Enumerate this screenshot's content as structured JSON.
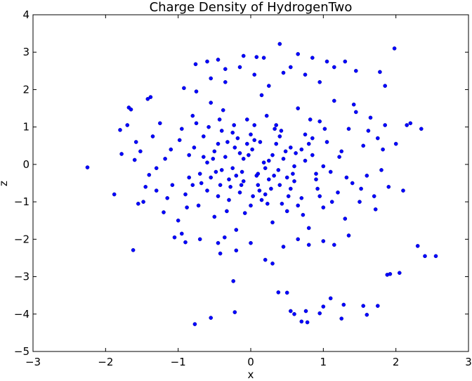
{
  "chart_data": {
    "type": "scatter",
    "title": "Charge Density of HydrogenTwo",
    "xlabel": "x",
    "ylabel": "z",
    "xlim": [
      -3,
      3
    ],
    "ylim": [
      -5,
      4
    ],
    "xticks": [
      "−3",
      "−2",
      "−1",
      "0",
      "1",
      "2",
      "3"
    ],
    "yticks": [
      "−5",
      "−4",
      "−3",
      "−2",
      "−1",
      "0",
      "1",
      "2",
      "3",
      "4"
    ],
    "grid": false,
    "marker_color": "#0000ff",
    "series": [
      {
        "points": [
          [
            -2.25,
            -0.08
          ],
          [
            -1.88,
            -0.8
          ],
          [
            -1.8,
            0.92
          ],
          [
            -1.78,
            0.28
          ],
          [
            -1.68,
            1.52
          ],
          [
            -1.65,
            1.47
          ],
          [
            -1.62,
            -2.29
          ],
          [
            -1.55,
            -1.05
          ],
          [
            -1.48,
            -1.0
          ],
          [
            -1.6,
            0.12
          ],
          [
            -1.52,
            0.35
          ],
          [
            -1.38,
            1.8
          ],
          [
            -1.4,
            -0.28
          ],
          [
            -1.3,
            -0.7
          ],
          [
            -1.2,
            -1.28
          ],
          [
            -1.05,
            -1.95
          ],
          [
            -0.92,
            2.04
          ],
          [
            -0.9,
            -2.08
          ],
          [
            -0.76,
            2.68
          ],
          [
            -0.77,
            -4.27
          ],
          [
            -0.55,
            -4.1
          ],
          [
            -0.42,
            -2.38
          ],
          [
            -0.36,
            -1.95
          ],
          [
            -0.24,
            -3.12
          ],
          [
            -0.22,
            -3.95
          ],
          [
            -0.1,
            2.9
          ],
          [
            0.08,
            2.87
          ],
          [
            0.18,
            2.85
          ],
          [
            0.3,
            -2.65
          ],
          [
            0.4,
            3.22
          ],
          [
            0.38,
            -3.42
          ],
          [
            0.5,
            -3.43
          ],
          [
            0.55,
            -3.92
          ],
          [
            0.6,
            -4.0
          ],
          [
            0.7,
            -4.2
          ],
          [
            0.76,
            -3.92
          ],
          [
            0.78,
            -4.22
          ],
          [
            0.95,
            -3.98
          ],
          [
            1.0,
            -3.8
          ],
          [
            1.1,
            -3.58
          ],
          [
            1.25,
            -4.12
          ],
          [
            1.28,
            -3.75
          ],
          [
            1.55,
            -3.78
          ],
          [
            1.6,
            -4.02
          ],
          [
            1.75,
            -3.78
          ],
          [
            1.78,
            2.47
          ],
          [
            1.85,
            2.1
          ],
          [
            1.88,
            -2.95
          ],
          [
            1.92,
            -2.93
          ],
          [
            1.98,
            3.1
          ],
          [
            2.05,
            -2.9
          ],
          [
            2.3,
            -2.18
          ],
          [
            2.4,
            -2.45
          ],
          [
            2.55,
            -2.45
          ],
          [
            -1.45,
            -0.6
          ],
          [
            -1.35,
            0.75
          ],
          [
            -1.25,
            1.1
          ],
          [
            -1.15,
            -0.9
          ],
          [
            -1.1,
            0.4
          ],
          [
            -1.0,
            -1.5
          ],
          [
            -0.95,
            0.95
          ],
          [
            -0.85,
            -0.35
          ],
          [
            -0.8,
            1.3
          ],
          [
            -0.72,
            -1.1
          ],
          [
            -0.65,
            0.2
          ],
          [
            -0.6,
            -0.7
          ],
          [
            -0.55,
            1.65
          ],
          [
            -0.5,
            -1.4
          ],
          [
            -0.45,
            0.55
          ],
          [
            -0.4,
            -0.15
          ],
          [
            -0.35,
            2.2
          ],
          [
            -0.3,
            -0.95
          ],
          [
            -0.25,
            0.85
          ],
          [
            -0.2,
            -1.75
          ],
          [
            -0.15,
            0.3
          ],
          [
            -0.1,
            -0.45
          ],
          [
            -0.05,
            1.2
          ],
          [
            0.0,
            -1.1
          ],
          [
            0.05,
            0.65
          ],
          [
            0.1,
            -0.25
          ],
          [
            0.15,
            1.85
          ],
          [
            0.2,
            -0.8
          ],
          [
            0.25,
            0.1
          ],
          [
            0.3,
            -1.55
          ],
          [
            0.35,
            1.05
          ],
          [
            0.4,
            -0.55
          ],
          [
            0.45,
            2.45
          ],
          [
            0.5,
            -1.25
          ],
          [
            0.55,
            0.45
          ],
          [
            0.6,
            -0.05
          ],
          [
            0.65,
            1.5
          ],
          [
            0.7,
            -0.9
          ],
          [
            0.75,
            0.8
          ],
          [
            0.8,
            -1.7
          ],
          [
            0.85,
            0.25
          ],
          [
            0.9,
            -0.4
          ],
          [
            0.95,
            1.15
          ],
          [
            1.0,
            -1.15
          ],
          [
            1.05,
            0.6
          ],
          [
            1.1,
            -0.2
          ],
          [
            1.15,
            1.7
          ],
          [
            1.2,
            -0.75
          ],
          [
            1.25,
            0.35
          ],
          [
            1.3,
            -1.45
          ],
          [
            1.35,
            0.95
          ],
          [
            1.4,
            -0.5
          ],
          [
            1.45,
            1.4
          ],
          [
            1.5,
            -1.0
          ],
          [
            1.55,
            0.5
          ],
          [
            1.6,
            -0.3
          ],
          [
            1.65,
            1.25
          ],
          [
            1.7,
            -0.85
          ],
          [
            1.75,
            0.7
          ],
          [
            1.8,
            -0.15
          ],
          [
            1.85,
            1.05
          ],
          [
            1.9,
            -0.6
          ],
          [
            2.0,
            0.55
          ],
          [
            2.1,
            -0.7
          ],
          [
            2.2,
            1.1
          ],
          [
            2.35,
            0.95
          ],
          [
            2.15,
            1.05
          ],
          [
            -1.7,
            1.05
          ],
          [
            -1.58,
            0.6
          ],
          [
            -1.42,
            1.75
          ],
          [
            -1.3,
            -0.1
          ],
          [
            -1.18,
            0.15
          ],
          [
            -1.08,
            -0.55
          ],
          [
            -0.98,
            0.65
          ],
          [
            -0.88,
            -1.15
          ],
          [
            -0.78,
            0.45
          ],
          [
            -0.68,
            -0.5
          ],
          [
            -0.58,
            1.0
          ],
          [
            -0.48,
            -0.2
          ],
          [
            -0.38,
            1.45
          ],
          [
            -0.28,
            -0.6
          ],
          [
            -0.18,
            0.7
          ],
          [
            -0.08,
            -1.3
          ],
          [
            0.02,
            0.4
          ],
          [
            0.12,
            -0.7
          ],
          [
            0.22,
            1.3
          ],
          [
            0.32,
            -0.3
          ],
          [
            0.42,
            0.9
          ],
          [
            0.52,
            -0.85
          ],
          [
            0.62,
            0.3
          ],
          [
            0.72,
            -1.35
          ],
          [
            0.82,
            1.2
          ],
          [
            0.92,
            -0.65
          ],
          [
            1.02,
            0.95
          ],
          [
            1.12,
            -1.0
          ],
          [
            1.22,
            0.2
          ],
          [
            1.32,
            -0.35
          ],
          [
            1.42,
            1.6
          ],
          [
            1.52,
            -0.65
          ],
          [
            1.62,
            0.9
          ],
          [
            1.72,
            -1.2
          ],
          [
            1.82,
            0.4
          ],
          [
            -0.9,
            -0.8
          ],
          [
            -0.7,
            -0.25
          ],
          [
            -0.5,
            0.35
          ],
          [
            -0.3,
            -0.4
          ],
          [
            -0.1,
            0.15
          ],
          [
            0.1,
            -0.55
          ],
          [
            0.3,
            0.25
          ],
          [
            0.5,
            -0.35
          ],
          [
            0.7,
            0.4
          ],
          [
            0.9,
            -0.25
          ],
          [
            -0.85,
            0.25
          ],
          [
            -0.65,
            0.75
          ],
          [
            -0.45,
            -0.85
          ],
          [
            -0.25,
            -0.1
          ],
          [
            -0.05,
            0.55
          ],
          [
            0.15,
            -0.95
          ],
          [
            0.35,
            0.55
          ],
          [
            0.55,
            -0.65
          ],
          [
            0.75,
            0.1
          ],
          [
            0.95,
            -0.85
          ],
          [
            -0.8,
            -0.55
          ],
          [
            -0.6,
            0.05
          ],
          [
            -0.4,
            0.9
          ],
          [
            -0.2,
            -0.3
          ],
          [
            0.0,
            0.8
          ],
          [
            0.2,
            -0.1
          ],
          [
            0.4,
            0.75
          ],
          [
            0.6,
            -0.45
          ],
          [
            0.8,
            0.55
          ],
          [
            1.0,
            -0.05
          ],
          [
            -0.75,
            1.1
          ],
          [
            -0.55,
            -0.35
          ],
          [
            -0.35,
            0.2
          ],
          [
            -0.15,
            -0.75
          ],
          [
            0.05,
            1.05
          ],
          [
            0.25,
            -0.4
          ],
          [
            0.45,
            0.15
          ],
          [
            0.65,
            -1.1
          ],
          [
            0.85,
            0.7
          ],
          [
            -0.12,
            -0.2
          ],
          [
            0.08,
            -0.3
          ],
          [
            0.18,
            0.05
          ],
          [
            -0.22,
            0.45
          ],
          [
            0.28,
            -0.65
          ],
          [
            -0.32,
            0.6
          ],
          [
            0.38,
            -0.15
          ],
          [
            -0.42,
            -0.55
          ],
          [
            0.48,
            0.35
          ],
          [
            -0.52,
            0.15
          ],
          [
            0.58,
            -0.25
          ],
          [
            0.03,
            -0.85
          ],
          [
            -0.03,
            0.25
          ],
          [
            0.13,
            0.6
          ],
          [
            -0.13,
            -0.55
          ],
          [
            0.23,
            -1.05
          ],
          [
            -0.23,
            1.05
          ],
          [
            0.33,
            0.95
          ],
          [
            -0.33,
            -1.25
          ],
          [
            0.43,
            -1.05
          ],
          [
            -0.43,
            1.2
          ],
          [
            -0.15,
            2.6
          ],
          [
            0.05,
            2.4
          ],
          [
            0.25,
            2.1
          ],
          [
            -0.35,
            2.55
          ],
          [
            0.55,
            2.6
          ],
          [
            -0.55,
            2.3
          ],
          [
            0.75,
            2.4
          ],
          [
            -0.75,
            1.95
          ],
          [
            0.95,
            2.2
          ],
          [
            1.05,
            2.75
          ],
          [
            1.15,
            2.6
          ],
          [
            1.3,
            2.75
          ],
          [
            1.45,
            2.5
          ],
          [
            0.85,
            2.85
          ],
          [
            0.65,
            2.95
          ],
          [
            -0.6,
            2.75
          ],
          [
            -0.45,
            2.8
          ],
          [
            -0.2,
            -2.3
          ],
          [
            0.0,
            -2.1
          ],
          [
            0.2,
            -2.55
          ],
          [
            0.45,
            -2.2
          ],
          [
            0.65,
            -2.0
          ],
          [
            -0.45,
            -2.1
          ],
          [
            0.8,
            -2.15
          ],
          [
            1.0,
            -2.05
          ],
          [
            1.15,
            -2.15
          ],
          [
            1.35,
            -1.9
          ],
          [
            -0.7,
            -2.0
          ],
          [
            -0.95,
            -1.85
          ]
        ]
      }
    ]
  }
}
